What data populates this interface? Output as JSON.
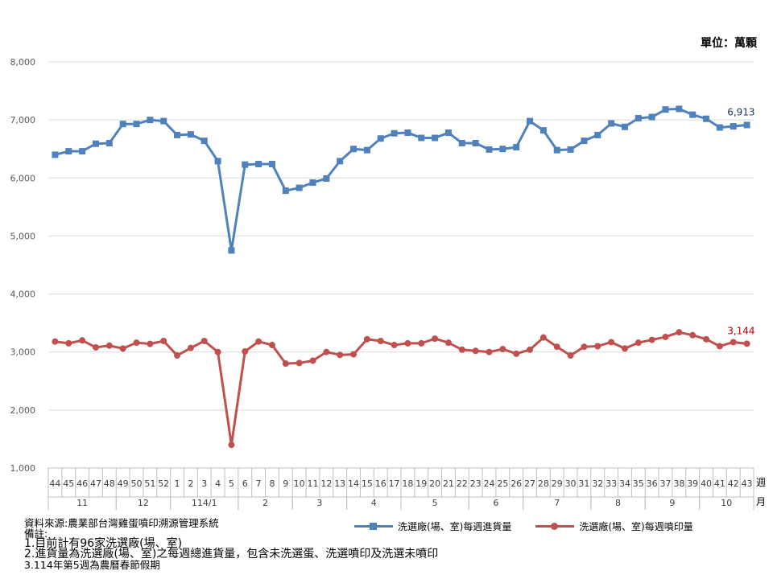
{
  "unit_label": "單位：萬顆",
  "chart_data": {
    "type": "line",
    "ylim": [
      1000,
      8000
    ],
    "yticks": [
      "1,000",
      "2,000",
      "3,000",
      "4,000",
      "5,000",
      "6,000",
      "7,000",
      "8,000"
    ],
    "grid": true,
    "x": [
      "44",
      "45",
      "46",
      "47",
      "48",
      "49",
      "50",
      "51",
      "52",
      "1",
      "2",
      "3",
      "4",
      "5",
      "6",
      "7",
      "8",
      "9",
      "10",
      "11",
      "12",
      "13",
      "14",
      "15",
      "16",
      "17",
      "18",
      "19",
      "20",
      "21",
      "22",
      "23",
      "24",
      "25",
      "26",
      "27",
      "28",
      "29",
      "30",
      "31",
      "32",
      "33",
      "34",
      "35",
      "36",
      "37",
      "38",
      "39",
      "40",
      "41",
      "42",
      "43"
    ],
    "x_unit_label": "週\n月",
    "month_groups": [
      {
        "label": "11",
        "count": 5
      },
      {
        "label": "12",
        "count": 4
      },
      {
        "label": "114/1",
        "count": 5
      },
      {
        "label": "2",
        "count": 4
      },
      {
        "label": "3",
        "count": 4
      },
      {
        "label": "4",
        "count": 4
      },
      {
        "label": "5",
        "count": 5
      },
      {
        "label": "6",
        "count": 4
      },
      {
        "label": "7",
        "count": 5
      },
      {
        "label": "8",
        "count": 4
      },
      {
        "label": "9",
        "count": 4
      },
      {
        "label": "10",
        "count": 4
      }
    ],
    "series": [
      {
        "name": "洗選廠(場、室)每週進貨量",
        "color": "#4f81bd",
        "marker": "square",
        "last_label": "6,913",
        "values": [
          6400,
          6460,
          6460,
          6590,
          6600,
          6930,
          6930,
          7000,
          6980,
          6740,
          6750,
          6640,
          6290,
          4750,
          6230,
          6240,
          6240,
          5780,
          5830,
          5920,
          5990,
          6290,
          6500,
          6480,
          6680,
          6770,
          6780,
          6690,
          6690,
          6780,
          6600,
          6600,
          6490,
          6500,
          6530,
          6980,
          6820,
          6480,
          6490,
          6640,
          6740,
          6940,
          6880,
          7030,
          7050,
          7180,
          7190,
          7090,
          7020,
          6870,
          6890,
          6913
        ]
      },
      {
        "name": "洗選廠(場、室)每週噴印量",
        "color": "#c0504d",
        "marker": "circle",
        "last_label": "3,144",
        "values": [
          3180,
          3150,
          3200,
          3080,
          3110,
          3060,
          3160,
          3140,
          3190,
          2940,
          3070,
          3190,
          3000,
          1400,
          3010,
          3180,
          3120,
          2800,
          2810,
          2850,
          3000,
          2950,
          2960,
          3220,
          3190,
          3120,
          3150,
          3150,
          3230,
          3160,
          3040,
          3020,
          3000,
          3050,
          2970,
          3040,
          3250,
          3090,
          2940,
          3090,
          3100,
          3170,
          3060,
          3160,
          3210,
          3260,
          3340,
          3290,
          3220,
          3100,
          3170,
          3144
        ]
      }
    ]
  },
  "notes": {
    "source": "資料來源:農業部台灣雞蛋噴印溯源管理系統",
    "remarks_title": "備註:",
    "note1": "1.目前計有96家洗選廠(場、室)",
    "note2": "2.進貨量為洗選廠(場、室)之每週總進貨量，包含未洗選蛋、洗選噴印及洗選未噴印",
    "note3": "3.114年第5週為農曆春節假期"
  }
}
